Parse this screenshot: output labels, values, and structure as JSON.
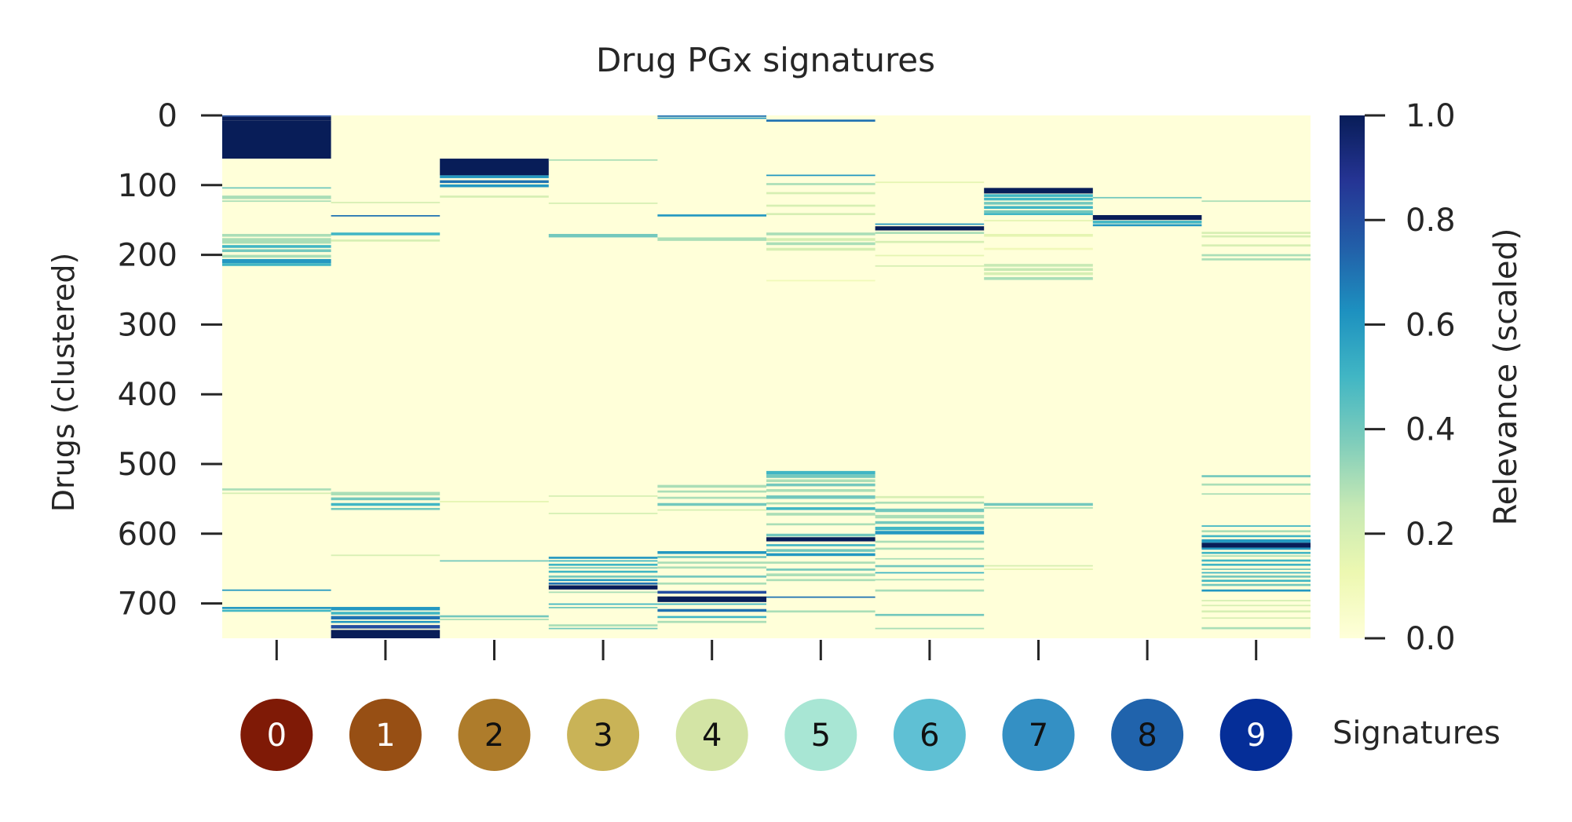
{
  "chart_data": {
    "type": "heatmap",
    "title": "Drug PGx signatures",
    "ylabel": "Drugs (clustered)",
    "xlabel": "",
    "ylim": [
      0,
      750
    ],
    "yticks": [
      "0",
      "100",
      "200",
      "300",
      "400",
      "500",
      "600",
      "700"
    ],
    "columns": [
      "0",
      "1",
      "2",
      "3",
      "4",
      "5",
      "6",
      "7",
      "8",
      "9"
    ],
    "colorbar": {
      "label": "Relevance (scaled)",
      "range": [
        0.0,
        1.0
      ],
      "ticks": [
        "0.0",
        "0.2",
        "0.4",
        "0.6",
        "0.8",
        "1.0"
      ],
      "colormap": "YlGnBu"
    },
    "signature_legend": {
      "label": "Signatures",
      "items": [
        {
          "id": "0",
          "color": "#7f1a06"
        },
        {
          "id": "1",
          "color": "#974f14"
        },
        {
          "id": "2",
          "color": "#ae7c2b"
        },
        {
          "id": "3",
          "color": "#c9b357"
        },
        {
          "id": "4",
          "color": "#d3e4a5"
        },
        {
          "id": "5",
          "color": "#a8e6d4"
        },
        {
          "id": "6",
          "color": "#5fc0d4"
        },
        {
          "id": "7",
          "color": "#3490c4"
        },
        {
          "id": "8",
          "color": "#2063ac"
        },
        {
          "id": "9",
          "color": "#052e98"
        }
      ]
    },
    "bands": [
      [
        [
          0,
          2,
          0.8
        ],
        [
          2,
          7,
          1.0
        ],
        [
          7,
          58,
          1.0
        ],
        [
          58,
          62,
          1.0
        ],
        [
          103,
          105,
          0.4
        ],
        [
          115,
          120,
          0.3
        ],
        [
          122,
          124,
          0.3
        ],
        [
          170,
          174,
          0.3
        ],
        [
          176,
          184,
          0.3
        ],
        [
          186,
          190,
          0.5
        ],
        [
          192,
          196,
          0.4
        ],
        [
          200,
          204,
          0.3
        ],
        [
          206,
          212,
          0.6
        ],
        [
          212,
          216,
          0.5
        ],
        [
          535,
          538,
          0.3
        ],
        [
          541,
          543,
          0.2
        ],
        [
          680,
          682,
          0.6
        ],
        [
          705,
          708,
          0.6
        ],
        [
          709,
          712,
          0.5
        ]
      ],
      [
        [
          124,
          126,
          0.2
        ],
        [
          143,
          145,
          0.7
        ],
        [
          168,
          172,
          0.5
        ],
        [
          178,
          181,
          0.2
        ],
        [
          540,
          545,
          0.3
        ],
        [
          548,
          552,
          0.4
        ],
        [
          556,
          560,
          0.5
        ],
        [
          563,
          566,
          0.4
        ],
        [
          630,
          632,
          0.2
        ],
        [
          705,
          710,
          0.6
        ],
        [
          712,
          716,
          0.5
        ],
        [
          718,
          723,
          0.7
        ],
        [
          725,
          728,
          0.6
        ],
        [
          731,
          736,
          0.8
        ],
        [
          738,
          752,
          1.0
        ]
      ],
      [
        [
          62,
          86,
          1.0
        ],
        [
          86,
          90,
          0.6
        ],
        [
          93,
          97,
          0.7
        ],
        [
          99,
          103,
          0.6
        ],
        [
          115,
          118,
          0.2
        ],
        [
          553,
          555,
          0.15
        ],
        [
          638,
          640,
          0.4
        ],
        [
          717,
          720,
          0.4
        ],
        [
          722,
          724,
          0.3
        ]
      ],
      [
        [
          63,
          65,
          0.3
        ],
        [
          125,
          127,
          0.2
        ],
        [
          170,
          175,
          0.4
        ],
        [
          545,
          547,
          0.2
        ],
        [
          570,
          572,
          0.2
        ],
        [
          633,
          636,
          0.6
        ],
        [
          638,
          640,
          0.5
        ],
        [
          643,
          646,
          0.5
        ],
        [
          648,
          650,
          0.4
        ],
        [
          653,
          656,
          0.5
        ],
        [
          660,
          663,
          0.4
        ],
        [
          665,
          668,
          0.6
        ],
        [
          670,
          673,
          0.7
        ],
        [
          674,
          680,
          1.0
        ],
        [
          683,
          685,
          0.3
        ],
        [
          700,
          702,
          0.5
        ],
        [
          705,
          707,
          0.4
        ],
        [
          730,
          733,
          0.3
        ],
        [
          735,
          737,
          0.4
        ]
      ],
      [
        [
          0,
          2,
          0.7
        ],
        [
          3,
          5,
          0.6
        ],
        [
          142,
          145,
          0.6
        ],
        [
          175,
          180,
          0.3
        ],
        [
          530,
          534,
          0.3
        ],
        [
          538,
          541,
          0.3
        ],
        [
          547,
          550,
          0.3
        ],
        [
          556,
          560,
          0.4
        ],
        [
          565,
          567,
          0.2
        ],
        [
          625,
          629,
          0.6
        ],
        [
          632,
          635,
          0.4
        ],
        [
          640,
          643,
          0.3
        ],
        [
          647,
          650,
          0.3
        ],
        [
          660,
          663,
          0.4
        ],
        [
          670,
          673,
          0.3
        ],
        [
          682,
          686,
          0.8
        ],
        [
          690,
          698,
          1.0
        ],
        [
          700,
          702,
          0.5
        ],
        [
          708,
          712,
          0.7
        ],
        [
          718,
          721,
          0.5
        ],
        [
          725,
          728,
          0.3
        ]
      ],
      [
        [
          6,
          9,
          0.7
        ],
        [
          85,
          87,
          0.6
        ],
        [
          97,
          100,
          0.3
        ],
        [
          110,
          113,
          0.2
        ],
        [
          128,
          131,
          0.2
        ],
        [
          140,
          143,
          0.2
        ],
        [
          168,
          172,
          0.3
        ],
        [
          176,
          180,
          0.2
        ],
        [
          182,
          186,
          0.3
        ],
        [
          190,
          194,
          0.2
        ],
        [
          236,
          238,
          0.1
        ],
        [
          510,
          515,
          0.5
        ],
        [
          515,
          520,
          0.4
        ],
        [
          522,
          526,
          0.3
        ],
        [
          528,
          532,
          0.4
        ],
        [
          536,
          540,
          0.3
        ],
        [
          545,
          550,
          0.4
        ],
        [
          555,
          558,
          0.3
        ],
        [
          562,
          566,
          0.5
        ],
        [
          570,
          574,
          0.3
        ],
        [
          585,
          588,
          0.3
        ],
        [
          600,
          604,
          0.4
        ],
        [
          605,
          611,
          1.0
        ],
        [
          615,
          618,
          0.5
        ],
        [
          622,
          626,
          0.4
        ],
        [
          628,
          632,
          0.6
        ],
        [
          640,
          643,
          0.3
        ],
        [
          650,
          653,
          0.4
        ],
        [
          657,
          661,
          0.3
        ],
        [
          665,
          668,
          0.3
        ],
        [
          690,
          692,
          0.7
        ],
        [
          710,
          713,
          0.3
        ]
      ],
      [
        [
          95,
          97,
          0.15
        ],
        [
          155,
          157,
          0.6
        ],
        [
          159,
          165,
          1.0
        ],
        [
          167,
          170,
          0.3
        ],
        [
          180,
          183,
          0.2
        ],
        [
          200,
          202,
          0.15
        ],
        [
          215,
          217,
          0.2
        ],
        [
          546,
          549,
          0.2
        ],
        [
          554,
          557,
          0.3
        ],
        [
          564,
          569,
          0.4
        ],
        [
          573,
          578,
          0.3
        ],
        [
          582,
          586,
          0.4
        ],
        [
          590,
          595,
          0.5
        ],
        [
          596,
          601,
          0.6
        ],
        [
          610,
          613,
          0.3
        ],
        [
          620,
          623,
          0.3
        ],
        [
          635,
          637,
          0.3
        ],
        [
          645,
          648,
          0.4
        ],
        [
          655,
          657,
          0.5
        ],
        [
          665,
          667,
          0.3
        ],
        [
          680,
          683,
          0.3
        ],
        [
          715,
          718,
          0.4
        ],
        [
          735,
          737,
          0.3
        ]
      ],
      [
        [
          104,
          112,
          1.0
        ],
        [
          113,
          117,
          0.5
        ],
        [
          118,
          122,
          0.5
        ],
        [
          124,
          128,
          0.4
        ],
        [
          130,
          134,
          0.5
        ],
        [
          136,
          140,
          0.4
        ],
        [
          140,
          143,
          0.5
        ],
        [
          150,
          152,
          0.15
        ],
        [
          170,
          174,
          0.15
        ],
        [
          190,
          193,
          0.1
        ],
        [
          213,
          217,
          0.25
        ],
        [
          219,
          223,
          0.25
        ],
        [
          225,
          229,
          0.2
        ],
        [
          232,
          236,
          0.3
        ],
        [
          556,
          560,
          0.4
        ],
        [
          562,
          564,
          0.3
        ],
        [
          645,
          647,
          0.2
        ],
        [
          650,
          652,
          0.15
        ]
      ],
      [
        [
          117,
          119,
          0.4
        ],
        [
          143,
          150,
          1.0
        ],
        [
          151,
          155,
          0.5
        ],
        [
          156,
          159,
          0.6
        ]
      ],
      [
        [
          122,
          124,
          0.3
        ],
        [
          167,
          170,
          0.2
        ],
        [
          172,
          175,
          0.2
        ],
        [
          185,
          188,
          0.2
        ],
        [
          199,
          202,
          0.3
        ],
        [
          205,
          208,
          0.3
        ],
        [
          516,
          519,
          0.4
        ],
        [
          528,
          531,
          0.3
        ],
        [
          542,
          544,
          0.3
        ],
        [
          588,
          590,
          0.5
        ],
        [
          595,
          598,
          0.3
        ],
        [
          602,
          605,
          0.5
        ],
        [
          608,
          613,
          0.6
        ],
        [
          613,
          620,
          1.0
        ],
        [
          620,
          623,
          0.6
        ],
        [
          626,
          629,
          0.5
        ],
        [
          631,
          633,
          0.3
        ],
        [
          637,
          640,
          0.5
        ],
        [
          643,
          646,
          0.5
        ],
        [
          650,
          652,
          0.4
        ],
        [
          655,
          657,
          0.5
        ],
        [
          660,
          663,
          0.4
        ],
        [
          666,
          669,
          0.5
        ],
        [
          672,
          675,
          0.4
        ],
        [
          680,
          683,
          0.6
        ],
        [
          695,
          697,
          0.2
        ],
        [
          702,
          704,
          0.2
        ],
        [
          710,
          713,
          0.2
        ],
        [
          720,
          722,
          0.2
        ],
        [
          734,
          737,
          0.3
        ]
      ]
    ]
  }
}
